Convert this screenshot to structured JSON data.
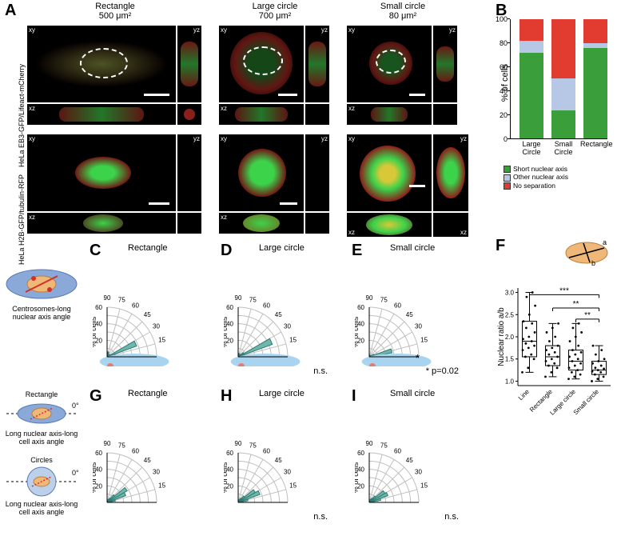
{
  "panelA": {
    "label": "A",
    "columns": [
      {
        "title_line1": "Rectangle",
        "title_line2": "500 μm²",
        "width_main": 186,
        "height_main": 112
      },
      {
        "title_line1": "Large circle",
        "title_line2": "700 μm²",
        "width_main": 108,
        "height_main": 112
      },
      {
        "title_line1": "Small circle",
        "title_line2": "80 μm²",
        "width_main": 108,
        "height_main": 112
      }
    ],
    "row_labels": [
      "HeLa EB3-GFP/Lifeact-mCherry",
      "HeLa H2B-GFP/tubulin-RFP"
    ],
    "proj_labels": {
      "xy": "xy",
      "xz": "xz",
      "yz": "yz"
    },
    "colors": {
      "gfp": "#3cd24a",
      "red": "#d03028",
      "bg": "#000000",
      "overlap": "#d8c838"
    }
  },
  "panelB": {
    "label": "B",
    "y_label": "% of cells",
    "y_ticks": [
      0,
      20,
      40,
      60,
      80,
      100
    ],
    "categories": [
      "Large Circle",
      "Small Circle",
      "Rectangle"
    ],
    "series": [
      {
        "name": "Short nuclear axis",
        "color": "#3a9e3a"
      },
      {
        "name": "Other nuclear axis",
        "color": "#b7c7e6"
      },
      {
        "name": "No separation",
        "color": "#e23b2f"
      }
    ],
    "stacks": [
      {
        "short": 72,
        "other": 10,
        "none": 18
      },
      {
        "short": 24,
        "other": 27,
        "none": 49
      },
      {
        "short": 76,
        "other": 4,
        "none": 20
      }
    ]
  },
  "roseCharts": {
    "ring_labels": [
      "15",
      "30",
      "45",
      "60",
      "75",
      "90"
    ],
    "y_label": "% of cells",
    "bar_color": "#6fb6ac",
    "bar_stroke": "#2f7a72",
    "grid_color": "#bfbfbf",
    "ellipse_color": "#a8d4ef",
    "dot_color": "#e77b6e",
    "max_radius_pct": 60,
    "rows": [
      {
        "schematic_title": "Centrosomes-long nuclear axis angle",
        "charts": [
          {
            "letter": "C",
            "title": "Rectangle",
            "bins": [
              8,
              10,
              38,
              4,
              2,
              2,
              4,
              6,
              6
            ],
            "note": ""
          },
          {
            "letter": "D",
            "title": "Large circle",
            "bins": [
              6,
              8,
              44,
              8,
              4,
              2,
              2,
              4,
              4
            ],
            "note": "n.s."
          },
          {
            "letter": "E",
            "title": "Small circle",
            "bins": [
              20,
              28,
              6,
              2,
              2,
              2,
              2,
              2,
              2
            ],
            "note": "* p=0.02",
            "star": "*"
          }
        ]
      },
      {
        "schematic_title": "Long nuclear axis-long cell axis angle",
        "schematic_title2": "Long nuclear axis-long cell axis angle",
        "shape_label_top": "Rectangle",
        "shape_label_bot": "Circles",
        "zero_label": "0°",
        "charts": [
          {
            "letter": "G",
            "title": "Rectangle",
            "bins": [
              4,
              10,
              24,
              28,
              12,
              6,
              4,
              2,
              2
            ],
            "note": ""
          },
          {
            "letter": "H",
            "title": "Large circle",
            "bins": [
              4,
              12,
              28,
              24,
              10,
              6,
              4,
              2,
              2
            ],
            "note": "n.s."
          },
          {
            "letter": "I",
            "title": "Small circle",
            "bins": [
              6,
              14,
              24,
              22,
              10,
              6,
              4,
              2,
              2
            ],
            "note": "n.s."
          }
        ]
      }
    ]
  },
  "panelF": {
    "label": "F",
    "y_label": "Nuclear ratio a/b",
    "categories": [
      "Line",
      "Rectangle",
      "Large circle",
      "Small circle"
    ],
    "y_ticks": [
      1.0,
      1.5,
      2.0,
      2.5,
      3.0
    ],
    "ylim": [
      0.9,
      3.1
    ],
    "boxes": [
      {
        "min": 1.2,
        "q1": 1.55,
        "med": 1.9,
        "q3": 2.35,
        "max": 3.0,
        "points": [
          1.2,
          1.3,
          1.5,
          1.55,
          1.6,
          1.7,
          1.75,
          1.8,
          1.85,
          1.9,
          1.95,
          2.0,
          2.1,
          2.2,
          2.3,
          2.35,
          2.5,
          2.7,
          2.9,
          3.0
        ]
      },
      {
        "min": 1.1,
        "q1": 1.35,
        "med": 1.55,
        "q3": 1.8,
        "max": 2.3,
        "points": [
          1.1,
          1.2,
          1.3,
          1.35,
          1.4,
          1.45,
          1.5,
          1.55,
          1.6,
          1.65,
          1.7,
          1.75,
          1.8,
          1.9,
          2.0,
          2.1,
          2.2,
          2.3
        ]
      },
      {
        "min": 1.05,
        "q1": 1.25,
        "med": 1.45,
        "q3": 1.7,
        "max": 2.3,
        "points": [
          1.05,
          1.1,
          1.15,
          1.2,
          1.25,
          1.3,
          1.35,
          1.4,
          1.45,
          1.5,
          1.55,
          1.6,
          1.65,
          1.7,
          1.8,
          1.9,
          2.0,
          2.1,
          2.2,
          2.3
        ]
      },
      {
        "min": 1.0,
        "q1": 1.15,
        "med": 1.25,
        "q3": 1.45,
        "max": 1.8,
        "points": [
          1.0,
          1.05,
          1.1,
          1.15,
          1.2,
          1.22,
          1.25,
          1.28,
          1.3,
          1.35,
          1.4,
          1.45,
          1.5,
          1.6,
          1.7,
          1.8
        ]
      }
    ],
    "sig": [
      {
        "from": 0,
        "to": 3,
        "label": "***",
        "y": 2.95
      },
      {
        "from": 1,
        "to": 3,
        "label": "**",
        "y": 2.65
      },
      {
        "from": 2,
        "to": 3,
        "label": "**",
        "y": 2.4
      }
    ],
    "diagram_labels": {
      "a": "a",
      "b": "b"
    },
    "colors": {
      "box_stroke": "#000000",
      "point": "#000000",
      "ellipse": "#f0b878"
    }
  }
}
